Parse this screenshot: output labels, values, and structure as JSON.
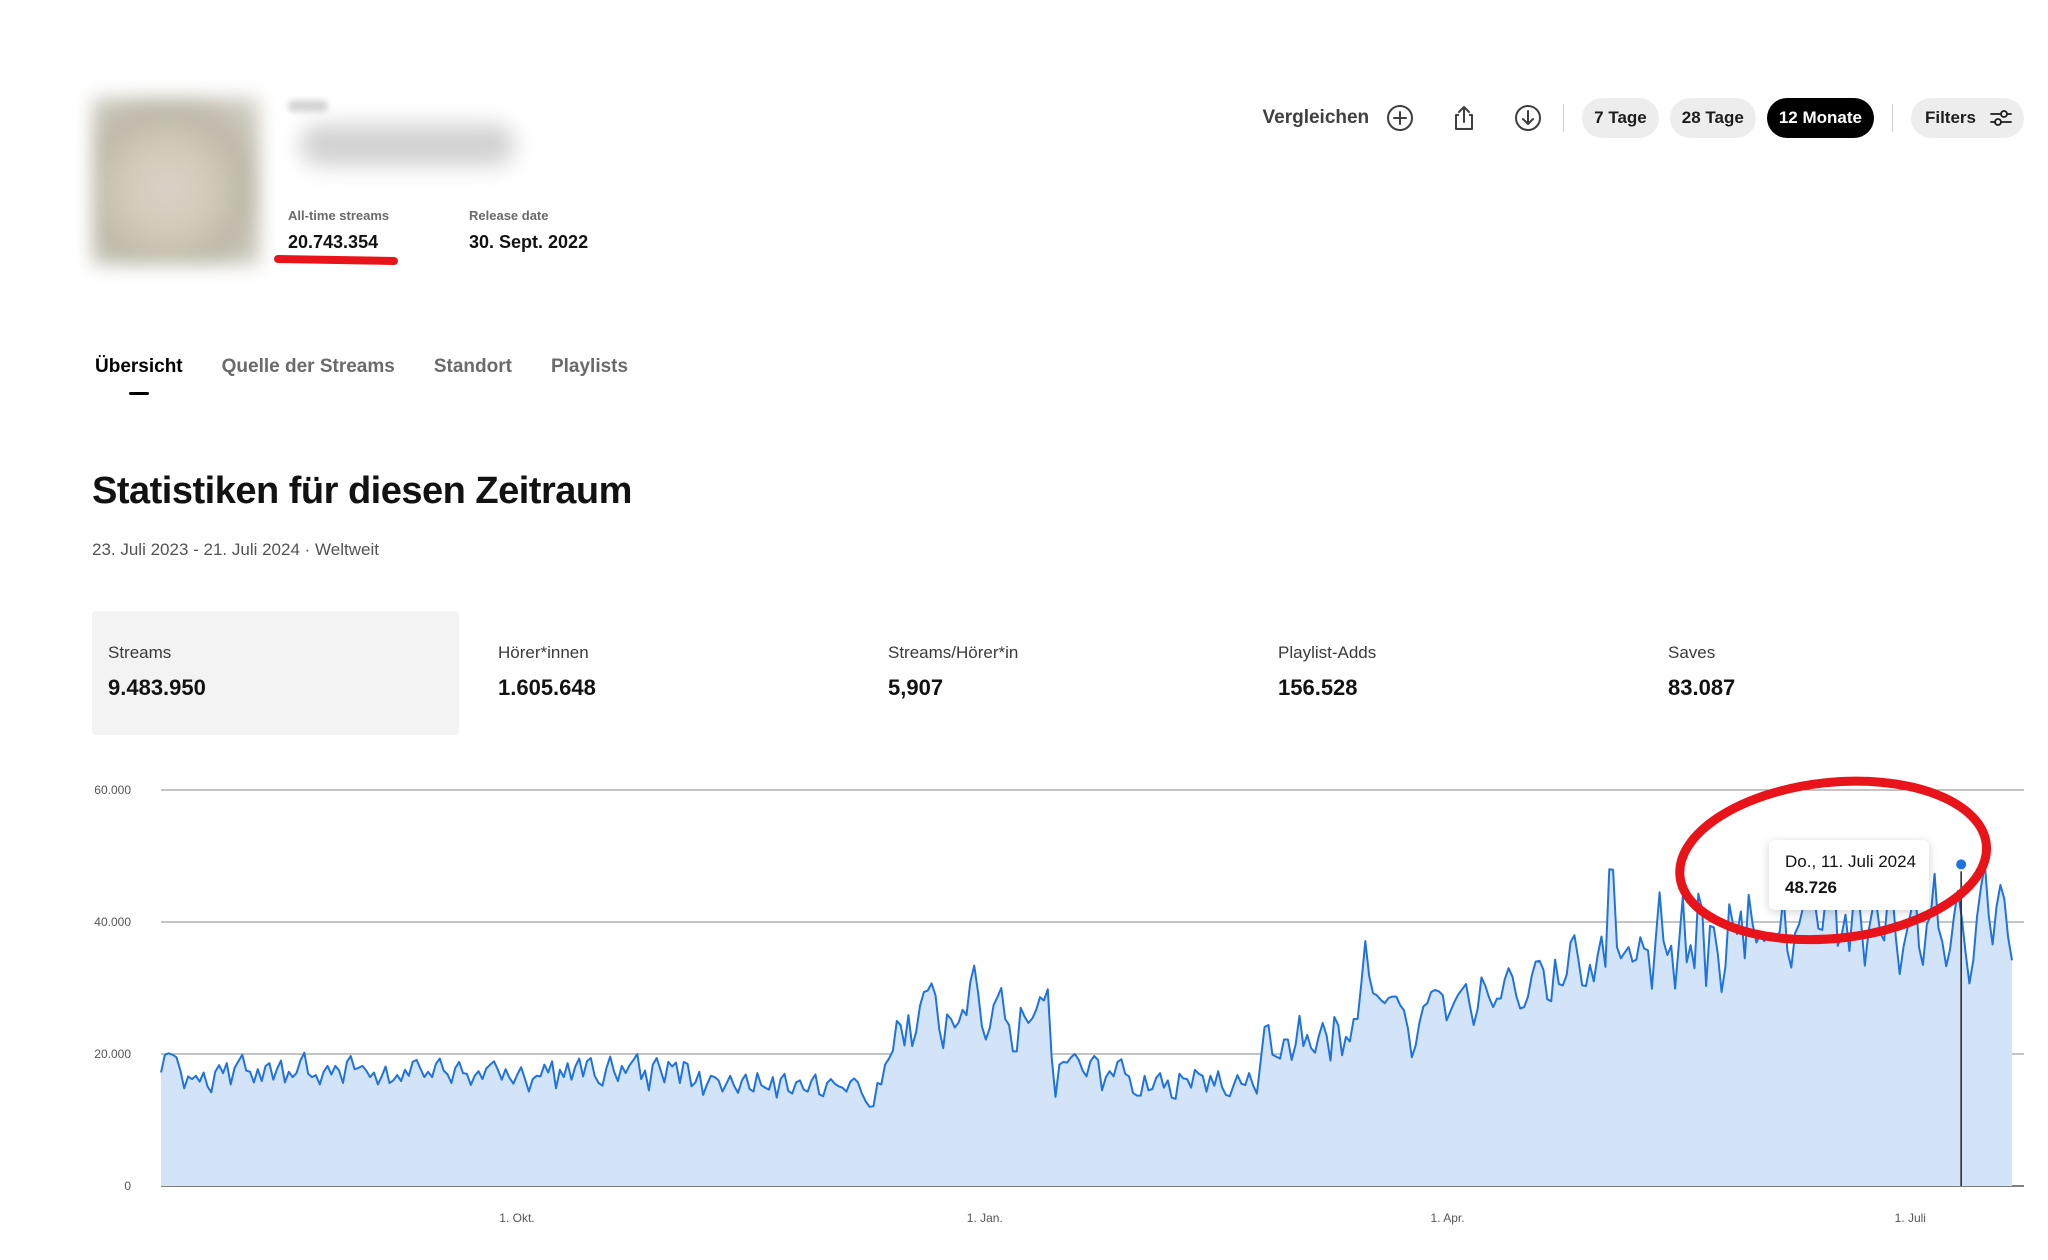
{
  "header": {
    "meta": [
      {
        "label": "All-time streams",
        "value": "20.743.354"
      },
      {
        "label": "Release date",
        "value": "30. Sept. 2022"
      }
    ]
  },
  "toolbar": {
    "compare_label": "Vergleichen",
    "ranges": [
      "7 Tage",
      "28 Tage",
      "12 Monate"
    ],
    "active_range": "12 Monate",
    "filters_label": "Filters",
    "icons": [
      "plus-circle-icon",
      "share-icon",
      "download-icon",
      "sliders-icon"
    ]
  },
  "tabs": [
    {
      "label": "Übersicht",
      "active": true
    },
    {
      "label": "Quelle der Streams",
      "active": false
    },
    {
      "label": "Standort",
      "active": false
    },
    {
      "label": "Playlists",
      "active": false
    }
  ],
  "section": {
    "title": "Statistiken für diesen Zeitraum",
    "subtitle": "23. Juli 2023 - 21. Juli 2024 · Weltweit"
  },
  "stats": [
    {
      "label": "Streams",
      "value": "9.483.950",
      "selected": true
    },
    {
      "label": "Hörer*innen",
      "value": "1.605.648",
      "selected": false
    },
    {
      "label": "Streams/Hörer*in",
      "value": "5,907",
      "selected": false
    },
    {
      "label": "Playlist-Adds",
      "value": "156.528",
      "selected": false
    },
    {
      "label": "Saves",
      "value": "83.087",
      "selected": false
    }
  ],
  "colors": {
    "line": "#1e73e0",
    "fill": "#d3e3f8",
    "accent": "#000000",
    "annotation": "#e8141a"
  },
  "tooltip": {
    "date": "Do., 11. Juli 2024",
    "value": "48.726"
  },
  "chart_data": {
    "type": "area",
    "x_start": "2023-07-23",
    "x_end": "2024-07-21",
    "y_ticks": [
      "60.000",
      "40.000",
      "20.000",
      "0"
    ],
    "ylim": [
      0,
      60000
    ],
    "x_ticks": [
      {
        "label": "1. Okt.",
        "date": "2023-10-01"
      },
      {
        "label": "1. Jan.",
        "date": "2024-01-01"
      },
      {
        "label": "1. Apr.",
        "date": "2024-04-01"
      },
      {
        "label": "1. Juli",
        "date": "2024-07-01"
      }
    ],
    "highlight": {
      "date": "2024-07-11",
      "value": 48726
    },
    "grid": true,
    "series": [
      {
        "values": [
          17200,
          19900,
          20100,
          19900,
          19500,
          17500,
          14800,
          16600,
          16200,
          16700,
          15800,
          17200,
          15100,
          14200,
          17300,
          18300,
          17100,
          18600,
          15400,
          17900,
          18900,
          19900,
          17500,
          17300,
          15700,
          17700,
          15900,
          18200,
          18600,
          16100,
          17800,
          19000,
          15700,
          17300,
          16500,
          17100,
          19000,
          20200,
          17000,
          16500,
          16800,
          15400,
          17300,
          18200,
          16900,
          18200,
          17500,
          15600,
          18800,
          19700,
          17700,
          17900,
          18200,
          17500,
          16500,
          17200,
          15400,
          16600,
          18100,
          15600,
          16000,
          16800,
          15900,
          17600,
          16700,
          18800,
          19100,
          17800,
          16500,
          17300,
          16500,
          18500,
          19300,
          17500,
          16900,
          15600,
          17900,
          18800,
          17100,
          17000,
          15300,
          16700,
          17400,
          16200,
          17800,
          18400,
          18900,
          17600,
          16100,
          17700,
          16400,
          15500,
          16900,
          18000,
          16200,
          14300,
          16200,
          16700,
          16600,
          18400,
          17200,
          18900,
          14800,
          17600,
          16500,
          18600,
          16100,
          18100,
          19300,
          16600,
          18900,
          19400,
          16700,
          15600,
          15200,
          17800,
          19600,
          17300,
          15900,
          18200,
          17100,
          18300,
          19100,
          20000,
          16200,
          17500,
          14500,
          18400,
          19400,
          17600,
          15700,
          18800,
          18100,
          18700,
          15600,
          18800,
          18500,
          15100,
          15700,
          17300,
          13800,
          15400,
          16700,
          16500,
          16000,
          14300,
          15500,
          16700,
          15200,
          14100,
          16000,
          16900,
          14700,
          14300,
          17100,
          15300,
          14900,
          14600,
          16500,
          13400,
          16200,
          17000,
          14400,
          14000,
          15700,
          16000,
          14600,
          14300,
          16000,
          16900,
          13900,
          13600,
          15600,
          16200,
          15500,
          15100,
          14900,
          14300,
          15800,
          16300,
          15700,
          14000,
          12800,
          12000,
          12100,
          15600,
          15400,
          18400,
          19300,
          20500,
          25000,
          24400,
          21300,
          25900,
          21200,
          23300,
          27300,
          29400,
          29600,
          30700,
          28900,
          23700,
          20900,
          26000,
          25300,
          24000,
          24800,
          26700,
          25900,
          30900,
          33400,
          29300,
          24200,
          22200,
          23900,
          27400,
          28600,
          30000,
          25300,
          24400,
          20400,
          20400,
          27000,
          25700,
          24700,
          25400,
          26700,
          28600,
          28100,
          29800,
          19600,
          13500,
          18400,
          18800,
          18700,
          19500,
          20000,
          19100,
          17500,
          16600,
          18900,
          19700,
          19100,
          14500,
          16500,
          17400,
          16600,
          18800,
          19200,
          17000,
          16600,
          14100,
          13700,
          13700,
          16700,
          14500,
          14700,
          16400,
          17100,
          14900,
          16000,
          13400,
          13200,
          17000,
          16300,
          16200,
          14900,
          17600,
          17000,
          16700,
          14300,
          16700,
          15200,
          17400,
          15000,
          13800,
          13600,
          15300,
          16800,
          15500,
          15300,
          17100,
          15300,
          14000,
          19100,
          24100,
          24400,
          19900,
          19600,
          19300,
          22200,
          22200,
          19100,
          21400,
          25800,
          21200,
          22900,
          20900,
          20200,
          22700,
          24700,
          22800,
          19000,
          25600,
          24400,
          19800,
          22600,
          21900,
          25300,
          25300,
          30800,
          37100,
          31800,
          29200,
          28900,
          28200,
          27700,
          28500,
          28700,
          28700,
          27400,
          26600,
          23900,
          19500,
          21300,
          24800,
          27200,
          27700,
          29400,
          29700,
          29500,
          28900,
          25100,
          26500,
          27900,
          29000,
          29800,
          30600,
          27300,
          24400,
          26800,
          31600,
          30300,
          28500,
          27100,
          28400,
          28400,
          31300,
          33000,
          31700,
          28800,
          26900,
          27100,
          28700,
          31900,
          34000,
          34100,
          32800,
          28300,
          28000,
          34300,
          30600,
          30400,
          32000,
          36900,
          38000,
          34400,
          30400,
          30300,
          33500,
          31000,
          35000,
          37800,
          33200,
          48000,
          47900,
          36200,
          34500,
          35400,
          36200,
          34000,
          34300,
          37700,
          36000,
          35700,
          29900,
          37400,
          44500,
          37100,
          35000,
          36400,
          29900,
          36800,
          43800,
          33900,
          36500,
          33000,
          44300,
          41900,
          30300,
          39400,
          39200,
          35300,
          29400,
          33200,
          42700,
          39500,
          38200,
          41600,
          34500,
          44100,
          39700,
          36900,
          38000,
          37100,
          37800,
          38300,
          37500,
          38500,
          44000,
          35600,
          33100,
          38300,
          39600,
          42100,
          45900,
          50000,
          43400,
          39000,
          38800,
          44100,
          44600,
          48600,
          36400,
          38000,
          41100,
          35600,
          42600,
          46400,
          40200,
          33400,
          38700,
          42000,
          42700,
          38300,
          37200,
          44100,
          45600,
          37700,
          32100,
          36300,
          39000,
          41800,
          45000,
          36100,
          33500,
          39600,
          41000,
          47300,
          39100,
          37000,
          33300,
          35800,
          40800,
          44700,
          40700,
          35500,
          30700,
          34200,
          40900,
          45300,
          48726,
          40900,
          36600,
          42300,
          45600,
          43500,
          37700,
          34200
        ]
      }
    ]
  }
}
